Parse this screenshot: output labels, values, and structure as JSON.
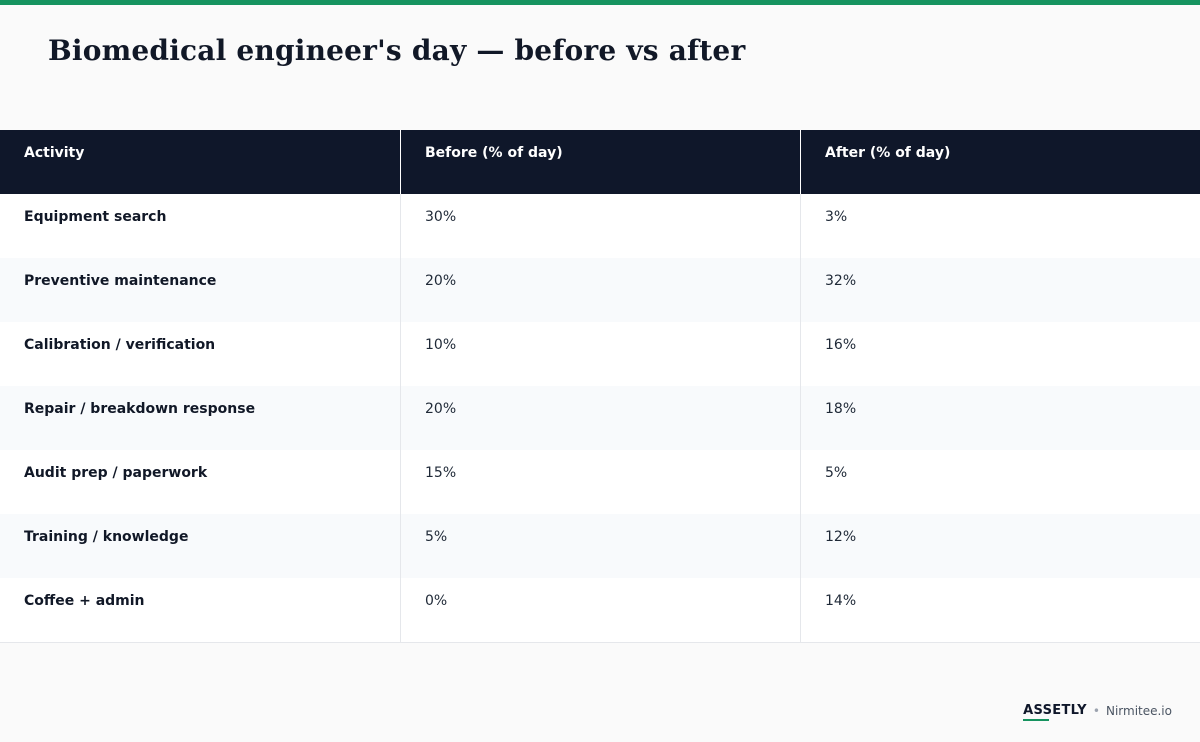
{
  "title": "Biomedical engineer's day — before vs after",
  "colors": {
    "accent": "#16935f",
    "header_bg": "#0f172a",
    "row_alt_bg": "#f8fafc",
    "text": "#111827"
  },
  "chart_data": {
    "type": "table",
    "columns": [
      "Activity",
      "Before (% of day)",
      "After (% of day)"
    ],
    "rows": [
      [
        "Equipment search",
        "30%",
        "3%"
      ],
      [
        "Preventive maintenance",
        "20%",
        "32%"
      ],
      [
        "Calibration / verification",
        "10%",
        "16%"
      ],
      [
        "Repair / breakdown response",
        "20%",
        "18%"
      ],
      [
        "Audit prep / paperwork",
        "15%",
        "5%"
      ],
      [
        "Training / knowledge",
        "5%",
        "12%"
      ],
      [
        "Coffee + admin",
        "0%",
        "14%"
      ]
    ]
  },
  "footer": {
    "brand": "ASSETLY",
    "separator": "•",
    "site": "Nirmitee.io"
  }
}
